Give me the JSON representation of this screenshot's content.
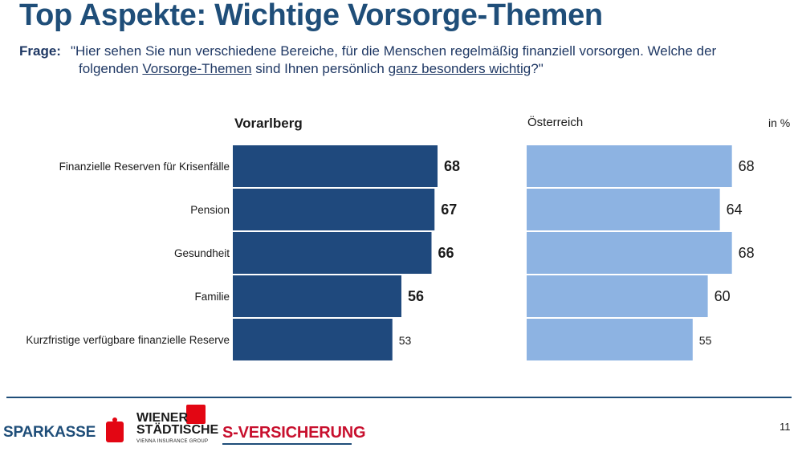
{
  "title": "Top Aspekte: Wichtige Vorsorge-Themen",
  "question": {
    "label": "Frage:",
    "line1": "\"Hier sehen Sie nun verschiedene Bereiche, für die Menschen regelmäßig finanziell vorsorgen. Welche der",
    "line2_prefix": "folgenden ",
    "line2_u1": "Vorsorge-Themen",
    "line2_mid": " sind Ihnen persönlich ",
    "line2_u2": "ganz besonders wichtig",
    "line2_suffix": "?\""
  },
  "unit_label": "in %",
  "chart_data": {
    "type": "bar",
    "orientation": "horizontal",
    "categories": [
      "Finanzielle Reserven für Krisenfälle",
      "Pension",
      "Gesundheit",
      "Familie",
      "Kurzfristige verfügbare finanzielle Reserve"
    ],
    "series": [
      {
        "name": "Vorarlberg",
        "values": [
          68,
          67,
          66,
          56,
          53
        ],
        "color": "#1f497d",
        "label_styles": [
          "bold",
          "bold",
          "bold",
          "bold",
          "small"
        ]
      },
      {
        "name": "Österreich",
        "values": [
          68,
          64,
          68,
          60,
          55
        ],
        "color": "#8db3e2",
        "label_styles": [
          "large",
          "large",
          "large",
          "large",
          "small"
        ]
      }
    ],
    "xlim": [
      0,
      100
    ],
    "grid": false,
    "legend": "none"
  },
  "footer": {
    "brands": [
      "SPARKASSE",
      "WIENER STÄDTISCHE",
      "S-VERSICHERUNG"
    ],
    "wiener_line1": "WIENER",
    "wiener_line2": "STÄDTISCHE",
    "wiener_sub": "VIENNA INSURANCE GROUP",
    "page_number": "11"
  },
  "colors": {
    "title": "#1f4e79",
    "brand_red": "#e30613",
    "brand_blue": "#1f4e79"
  }
}
